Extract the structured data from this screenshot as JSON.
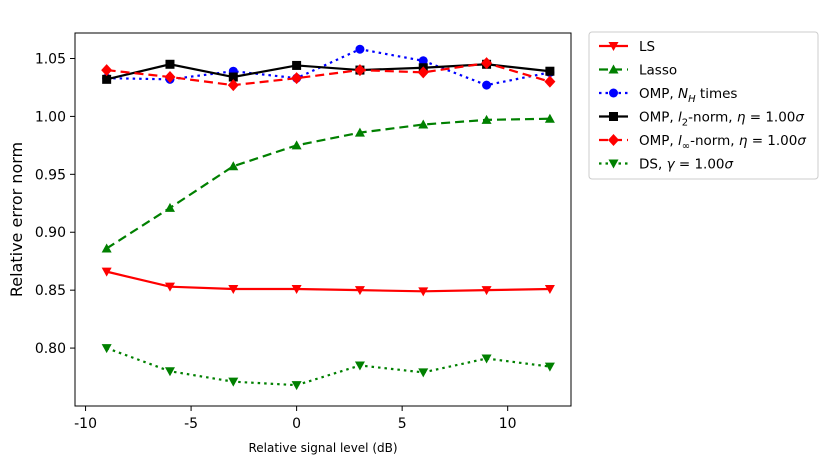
{
  "chart_data": {
    "type": "line",
    "title": "",
    "xlabel": "Relative signal level (dB)",
    "ylabel": "Relative error norm",
    "x": [
      -9,
      -6,
      -3,
      0,
      3,
      6,
      9,
      12
    ],
    "xlim": [
      -10.5,
      13
    ],
    "ylim": [
      0.75,
      1.072
    ],
    "xticks": [
      -10,
      -5,
      0,
      5,
      10
    ],
    "xtick_labels": [
      "-10",
      "-5",
      "0",
      "5",
      "10"
    ],
    "yticks": [
      0.8,
      0.85,
      0.9,
      0.95,
      1.0,
      1.05
    ],
    "ytick_labels": [
      "0.80",
      "0.85",
      "0.90",
      "0.95",
      "1.00",
      "1.05"
    ],
    "grid": false,
    "legend_position": "outside-right",
    "series": [
      {
        "name": "LS",
        "color": "#ff0000",
        "linestyle": "solid",
        "marker": "triangle-down",
        "values": [
          0.866,
          0.853,
          0.851,
          0.851,
          0.85,
          0.849,
          0.85,
          0.851
        ]
      },
      {
        "name": "Lasso",
        "color": "#008000",
        "linestyle": "dashed",
        "marker": "triangle-up",
        "values": [
          0.886,
          0.921,
          0.957,
          0.975,
          0.986,
          0.993,
          0.997,
          0.998
        ]
      },
      {
        "name": "OMP, N_H times",
        "legend_parts": [
          {
            "t": "OMP, ",
            "i": false
          },
          {
            "t": "N",
            "i": true
          },
          {
            "t": "H",
            "i": true,
            "sub": true
          },
          {
            "t": " times",
            "i": false
          }
        ],
        "color": "#0000ff",
        "linestyle": "dotted",
        "marker": "circle",
        "values": [
          1.033,
          1.032,
          1.039,
          1.033,
          1.058,
          1.048,
          1.027,
          1.038
        ]
      },
      {
        "name": "OMP, l2-norm, η = 1.00σ",
        "legend_parts": [
          {
            "t": "OMP, ",
            "i": false
          },
          {
            "t": "l",
            "i": true
          },
          {
            "t": "2",
            "i": false,
            "sub": true
          },
          {
            "t": "-norm, ",
            "i": false
          },
          {
            "t": "η",
            "i": true
          },
          {
            "t": " = 1.00",
            "i": false
          },
          {
            "t": "σ",
            "i": true
          }
        ],
        "color": "#000000",
        "linestyle": "solid",
        "marker": "square",
        "values": [
          1.032,
          1.045,
          1.034,
          1.044,
          1.04,
          1.042,
          1.045,
          1.039
        ]
      },
      {
        "name": "OMP, l∞-norm, η = 1.00σ",
        "legend_parts": [
          {
            "t": "OMP, ",
            "i": false
          },
          {
            "t": "l",
            "i": true
          },
          {
            "t": "∞",
            "i": false,
            "sub": true
          },
          {
            "t": "-norm, ",
            "i": false
          },
          {
            "t": "η",
            "i": true
          },
          {
            "t": " = 1.00",
            "i": false
          },
          {
            "t": "σ",
            "i": true
          }
        ],
        "color": "#ff0000",
        "linestyle": "dashed",
        "marker": "diamond",
        "values": [
          1.04,
          1.034,
          1.027,
          1.033,
          1.04,
          1.038,
          1.046,
          1.03
        ]
      },
      {
        "name": "DS, γ = 1.00σ",
        "legend_parts": [
          {
            "t": "DS, ",
            "i": false
          },
          {
            "t": "γ",
            "i": true
          },
          {
            "t": " = 1.00",
            "i": false
          },
          {
            "t": "σ",
            "i": true
          }
        ],
        "color": "#008000",
        "linestyle": "dotted",
        "marker": "triangle-down",
        "values": [
          0.8,
          0.78,
          0.771,
          0.768,
          0.785,
          0.779,
          0.791,
          0.784
        ]
      }
    ]
  }
}
